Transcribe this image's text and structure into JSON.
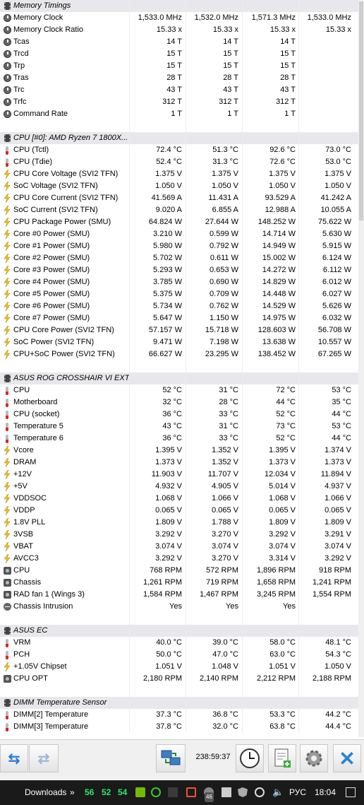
{
  "sections": [
    {
      "title": "Memory Timings",
      "rows": [
        {
          "icon": "timing",
          "label": "Memory Clock",
          "values": [
            "1,533.0 MHz",
            "1,532.0 MHz",
            "1,571.3 MHz",
            "1,533.0 MHz"
          ]
        },
        {
          "icon": "timing",
          "label": "Memory Clock Ratio",
          "values": [
            "15.33 x",
            "15.33 x",
            "15.33 x",
            "15.33 x"
          ]
        },
        {
          "icon": "timing",
          "label": "Tcas",
          "values": [
            "14 T",
            "14 T",
            "14 T",
            ""
          ]
        },
        {
          "icon": "timing",
          "label": "Trcd",
          "values": [
            "15 T",
            "15 T",
            "15 T",
            ""
          ]
        },
        {
          "icon": "timing",
          "label": "Trp",
          "values": [
            "15 T",
            "15 T",
            "15 T",
            ""
          ]
        },
        {
          "icon": "timing",
          "label": "Tras",
          "values": [
            "28 T",
            "28 T",
            "28 T",
            ""
          ]
        },
        {
          "icon": "timing",
          "label": "Trc",
          "values": [
            "43 T",
            "43 T",
            "43 T",
            ""
          ]
        },
        {
          "icon": "timing",
          "label": "Trfc",
          "values": [
            "312 T",
            "312 T",
            "312 T",
            ""
          ]
        },
        {
          "icon": "timing",
          "label": "Command Rate",
          "values": [
            "1 T",
            "1 T",
            "1 T",
            ""
          ]
        }
      ]
    },
    {
      "title": "CPU [#0]: AMD Ryzen 7 1800X...",
      "rows": [
        {
          "icon": "therm",
          "label": "CPU (Tctl)",
          "values": [
            "72.4 °C",
            "51.3 °C",
            "92.6 °C",
            "73.0 °C"
          ]
        },
        {
          "icon": "therm",
          "label": "CPU (Tdie)",
          "values": [
            "52.4 °C",
            "31.3 °C",
            "72.6 °C",
            "53.0 °C"
          ]
        },
        {
          "icon": "volt",
          "label": "CPU Core Voltage (SVI2 TFN)",
          "values": [
            "1.375 V",
            "1.375 V",
            "1.375 V",
            "1.375 V"
          ]
        },
        {
          "icon": "volt",
          "label": "SoC Voltage (SVI2 TFN)",
          "values": [
            "1.050 V",
            "1.050 V",
            "1.050 V",
            "1.050 V"
          ]
        },
        {
          "icon": "volt",
          "label": "CPU Core Current (SVI2 TFN)",
          "values": [
            "41.569 A",
            "11.431 A",
            "93.529 A",
            "41.242 A"
          ]
        },
        {
          "icon": "volt",
          "label": "SoC Current (SVI2 TFN)",
          "values": [
            "9.020 A",
            "6.855 A",
            "12.988 A",
            "10.055 A"
          ]
        },
        {
          "icon": "volt",
          "label": "CPU Package Power (SMU)",
          "values": [
            "64.824 W",
            "27.644 W",
            "148.252 W",
            "75.622 W"
          ]
        },
        {
          "icon": "volt",
          "label": "Core #0 Power (SMU)",
          "values": [
            "3.210 W",
            "0.599 W",
            "14.714 W",
            "5.630 W"
          ]
        },
        {
          "icon": "volt",
          "label": "Core #1 Power (SMU)",
          "values": [
            "5.980 W",
            "0.792 W",
            "14.949 W",
            "5.915 W"
          ]
        },
        {
          "icon": "volt",
          "label": "Core #2 Power (SMU)",
          "values": [
            "5.702 W",
            "0.611 W",
            "15.002 W",
            "6.124 W"
          ]
        },
        {
          "icon": "volt",
          "label": "Core #3 Power (SMU)",
          "values": [
            "5.293 W",
            "0.653 W",
            "14.272 W",
            "6.112 W"
          ]
        },
        {
          "icon": "volt",
          "label": "Core #4 Power (SMU)",
          "values": [
            "3.785 W",
            "0.690 W",
            "14.829 W",
            "6.012 W"
          ]
        },
        {
          "icon": "volt",
          "label": "Core #5 Power (SMU)",
          "values": [
            "5.375 W",
            "0.709 W",
            "14.448 W",
            "6.027 W"
          ]
        },
        {
          "icon": "volt",
          "label": "Core #6 Power (SMU)",
          "values": [
            "5.734 W",
            "0.762 W",
            "14.529 W",
            "5.626 W"
          ]
        },
        {
          "icon": "volt",
          "label": "Core #7 Power (SMU)",
          "values": [
            "5.647 W",
            "1.150 W",
            "14.975 W",
            "6.032 W"
          ]
        },
        {
          "icon": "volt",
          "label": "CPU Core Power (SVI2 TFN)",
          "values": [
            "57.157 W",
            "15.718 W",
            "128.603 W",
            "56.708 W"
          ]
        },
        {
          "icon": "volt",
          "label": "SoC Power (SVI2 TFN)",
          "values": [
            "9.471 W",
            "7.198 W",
            "13.638 W",
            "10.557 W"
          ]
        },
        {
          "icon": "volt",
          "label": "CPU+SoC Power (SVI2 TFN)",
          "values": [
            "66.627 W",
            "23.295 W",
            "138.452 W",
            "67.265 W"
          ]
        }
      ]
    },
    {
      "title": "ASUS ROG CROSSHAIR VI EXT...",
      "rows": [
        {
          "icon": "therm",
          "label": "CPU",
          "values": [
            "52 °C",
            "31 °C",
            "72 °C",
            "53 °C"
          ]
        },
        {
          "icon": "therm",
          "label": "Motherboard",
          "values": [
            "32 °C",
            "28 °C",
            "44 °C",
            "35 °C"
          ]
        },
        {
          "icon": "therm",
          "label": "CPU (socket)",
          "values": [
            "36 °C",
            "33 °C",
            "52 °C",
            "44 °C"
          ]
        },
        {
          "icon": "therm",
          "label": "Temperature 5",
          "values": [
            "43 °C",
            "31 °C",
            "73 °C",
            "53 °C"
          ]
        },
        {
          "icon": "therm",
          "label": "Temperature 6",
          "values": [
            "36 °C",
            "33 °C",
            "52 °C",
            "44 °C"
          ]
        },
        {
          "icon": "volt",
          "label": "Vcore",
          "values": [
            "1.395 V",
            "1.352 V",
            "1.395 V",
            "1.374 V"
          ]
        },
        {
          "icon": "volt",
          "label": "DRAM",
          "values": [
            "1.373 V",
            "1.352 V",
            "1.373 V",
            "1.373 V"
          ]
        },
        {
          "icon": "volt",
          "label": "+12V",
          "values": [
            "11.903 V",
            "11.707 V",
            "12.034 V",
            "11.894 V"
          ]
        },
        {
          "icon": "volt",
          "label": "+5V",
          "values": [
            "4.932 V",
            "4.905 V",
            "5.014 V",
            "4.937 V"
          ]
        },
        {
          "icon": "volt",
          "label": "VDDSOC",
          "values": [
            "1.068 V",
            "1.066 V",
            "1.068 V",
            "1.066 V"
          ]
        },
        {
          "icon": "volt",
          "label": "VDDP",
          "values": [
            "0.065 V",
            "0.065 V",
            "0.065 V",
            "0.065 V"
          ]
        },
        {
          "icon": "volt",
          "label": "1.8V PLL",
          "values": [
            "1.809 V",
            "1.788 V",
            "1.809 V",
            "1.809 V"
          ]
        },
        {
          "icon": "volt",
          "label": "3VSB",
          "values": [
            "3.292 V",
            "3.270 V",
            "3.292 V",
            "3.291 V"
          ]
        },
        {
          "icon": "volt",
          "label": "VBAT",
          "values": [
            "3.074 V",
            "3.074 V",
            "3.074 V",
            "3.074 V"
          ]
        },
        {
          "icon": "volt",
          "label": "AVCC3",
          "values": [
            "3.292 V",
            "3.270 V",
            "3.314 V",
            "3.292 V"
          ]
        },
        {
          "icon": "fan",
          "label": "CPU",
          "values": [
            "768 RPM",
            "572 RPM",
            "1,896 RPM",
            "918 RPM"
          ]
        },
        {
          "icon": "fan",
          "label": "Chassis",
          "values": [
            "1,261 RPM",
            "719 RPM",
            "1,658 RPM",
            "1,241 RPM"
          ]
        },
        {
          "icon": "fan",
          "label": "RAD fan 1 (Wings 3)",
          "values": [
            "1,584 RPM",
            "1,467 RPM",
            "3,245 RPM",
            "1,554 RPM"
          ]
        },
        {
          "icon": "alert",
          "label": "Chassis Intrusion",
          "values": [
            "Yes",
            "Yes",
            "Yes",
            ""
          ]
        }
      ]
    },
    {
      "title": "ASUS EC",
      "rows": [
        {
          "icon": "therm",
          "label": "VRM",
          "values": [
            "40.0 °C",
            "39.0 °C",
            "58.0 °C",
            "48.1 °C"
          ]
        },
        {
          "icon": "therm",
          "label": "PCH",
          "values": [
            "50.0 °C",
            "47.0 °C",
            "63.0 °C",
            "54.3 °C"
          ]
        },
        {
          "icon": "volt",
          "label": "+1.05V Chipset",
          "values": [
            "1.051 V",
            "1.048 V",
            "1.051 V",
            "1.050 V"
          ]
        },
        {
          "icon": "fan",
          "label": "CPU OPT",
          "values": [
            "2,180 RPM",
            "2,140 RPM",
            "2,212 RPM",
            "2,188 RPM"
          ]
        }
      ]
    },
    {
      "title": "DIMM Temperature Sensor",
      "rows": [
        {
          "icon": "therm",
          "label": "DIMM[2] Temperature",
          "values": [
            "37.3 °C",
            "36.8 °C",
            "53.3 °C",
            "44.2 °C"
          ]
        },
        {
          "icon": "therm",
          "label": "DIMM[3] Temperature",
          "values": [
            "37.8 °C",
            "32.0 °C",
            "63.8 °C",
            "44.4 °C"
          ]
        }
      ]
    }
  ],
  "toolbar": {
    "timer": "238:59:37"
  },
  "taskbar": {
    "downloads_label": "Downloads",
    "temp1": "56",
    "temp2": "52",
    "temp3": "54",
    "badge": "46",
    "language": "РУС",
    "clock": "18:04"
  }
}
